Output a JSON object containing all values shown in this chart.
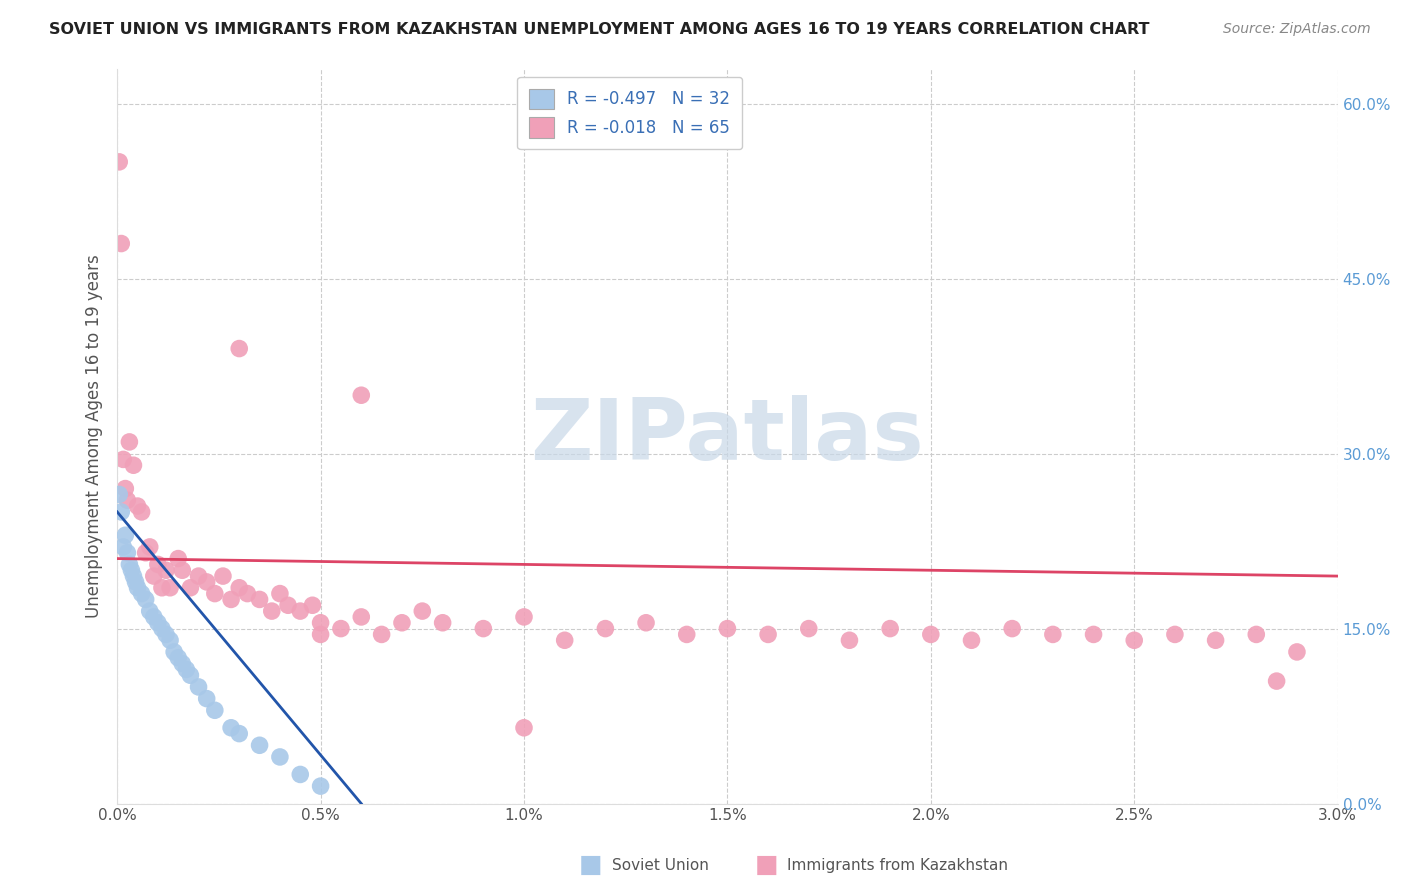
{
  "title": "SOVIET UNION VS IMMIGRANTS FROM KAZAKHSTAN UNEMPLOYMENT AMONG AGES 16 TO 19 YEARS CORRELATION CHART",
  "source": "Source: ZipAtlas.com",
  "ylabel": "Unemployment Among Ages 16 to 19 years",
  "xlim": [
    0.0,
    0.03
  ],
  "ylim": [
    0.0,
    0.63
  ],
  "x_ticks": [
    0.0,
    0.005,
    0.01,
    0.015,
    0.02,
    0.025,
    0.03
  ],
  "x_tick_labels": [
    "0.0%",
    "0.5%",
    "1.0%",
    "1.5%",
    "2.0%",
    "2.5%",
    "3.0%"
  ],
  "y_ticks_right": [
    0.0,
    0.15,
    0.3,
    0.45,
    0.6
  ],
  "y_tick_labels_right": [
    "0.0%",
    "15.0%",
    "30.0%",
    "45.0%",
    "60.0%"
  ],
  "legend_r1": "R = -0.497",
  "legend_n1": "N = 32",
  "legend_r2": "R = -0.018",
  "legend_n2": "N = 65",
  "blue_color": "#a8c8e8",
  "pink_color": "#f0a0b8",
  "blue_line_color": "#2255aa",
  "pink_line_color": "#dd4466",
  "watermark_text": "ZIPatlas",
  "watermark_color": "#c8d8e8",
  "background_color": "#ffffff",
  "grid_color": "#cccccc",
  "soviet_union_x": [
    5e-05,
    0.0001,
    0.00015,
    0.0002,
    0.00025,
    0.0003,
    0.00035,
    0.0004,
    0.00045,
    0.0005,
    0.0006,
    0.0007,
    0.0008,
    0.0009,
    0.001,
    0.0011,
    0.0012,
    0.0013,
    0.0014,
    0.0015,
    0.0016,
    0.0017,
    0.0018,
    0.002,
    0.0022,
    0.0024,
    0.0028,
    0.003,
    0.0035,
    0.004,
    0.0045,
    0.005
  ],
  "soviet_union_y": [
    0.265,
    0.25,
    0.22,
    0.23,
    0.215,
    0.205,
    0.2,
    0.195,
    0.19,
    0.185,
    0.18,
    0.175,
    0.165,
    0.16,
    0.155,
    0.15,
    0.145,
    0.14,
    0.13,
    0.125,
    0.12,
    0.115,
    0.11,
    0.1,
    0.09,
    0.08,
    0.065,
    0.06,
    0.05,
    0.04,
    0.025,
    0.015
  ],
  "kaz_x": [
    5e-05,
    0.0001,
    0.00015,
    0.0002,
    0.00025,
    0.0003,
    0.0004,
    0.0005,
    0.0006,
    0.0007,
    0.0008,
    0.0009,
    0.001,
    0.0011,
    0.0012,
    0.0013,
    0.0015,
    0.0016,
    0.0018,
    0.002,
    0.0022,
    0.0024,
    0.0026,
    0.0028,
    0.003,
    0.0032,
    0.0035,
    0.0038,
    0.004,
    0.0042,
    0.0045,
    0.0048,
    0.005,
    0.0055,
    0.006,
    0.0065,
    0.007,
    0.0075,
    0.008,
    0.009,
    0.01,
    0.011,
    0.012,
    0.013,
    0.014,
    0.015,
    0.016,
    0.017,
    0.018,
    0.019,
    0.02,
    0.021,
    0.022,
    0.023,
    0.024,
    0.025,
    0.026,
    0.027,
    0.028,
    0.029,
    0.006,
    0.01,
    0.003,
    0.005,
    0.0285
  ],
  "kaz_y": [
    0.55,
    0.48,
    0.295,
    0.27,
    0.26,
    0.31,
    0.29,
    0.255,
    0.25,
    0.215,
    0.22,
    0.195,
    0.205,
    0.185,
    0.2,
    0.185,
    0.21,
    0.2,
    0.185,
    0.195,
    0.19,
    0.18,
    0.195,
    0.175,
    0.185,
    0.18,
    0.175,
    0.165,
    0.18,
    0.17,
    0.165,
    0.17,
    0.155,
    0.15,
    0.16,
    0.145,
    0.155,
    0.165,
    0.155,
    0.15,
    0.16,
    0.14,
    0.15,
    0.155,
    0.145,
    0.15,
    0.145,
    0.15,
    0.14,
    0.15,
    0.145,
    0.14,
    0.15,
    0.145,
    0.145,
    0.14,
    0.145,
    0.14,
    0.145,
    0.13,
    0.35,
    0.065,
    0.39,
    0.145,
    0.105
  ],
  "bottom_legend": [
    {
      "label": "Soviet Union",
      "color": "#a8c8e8"
    },
    {
      "label": "Immigrants from Kazakhstan",
      "color": "#f0a0b8"
    }
  ]
}
